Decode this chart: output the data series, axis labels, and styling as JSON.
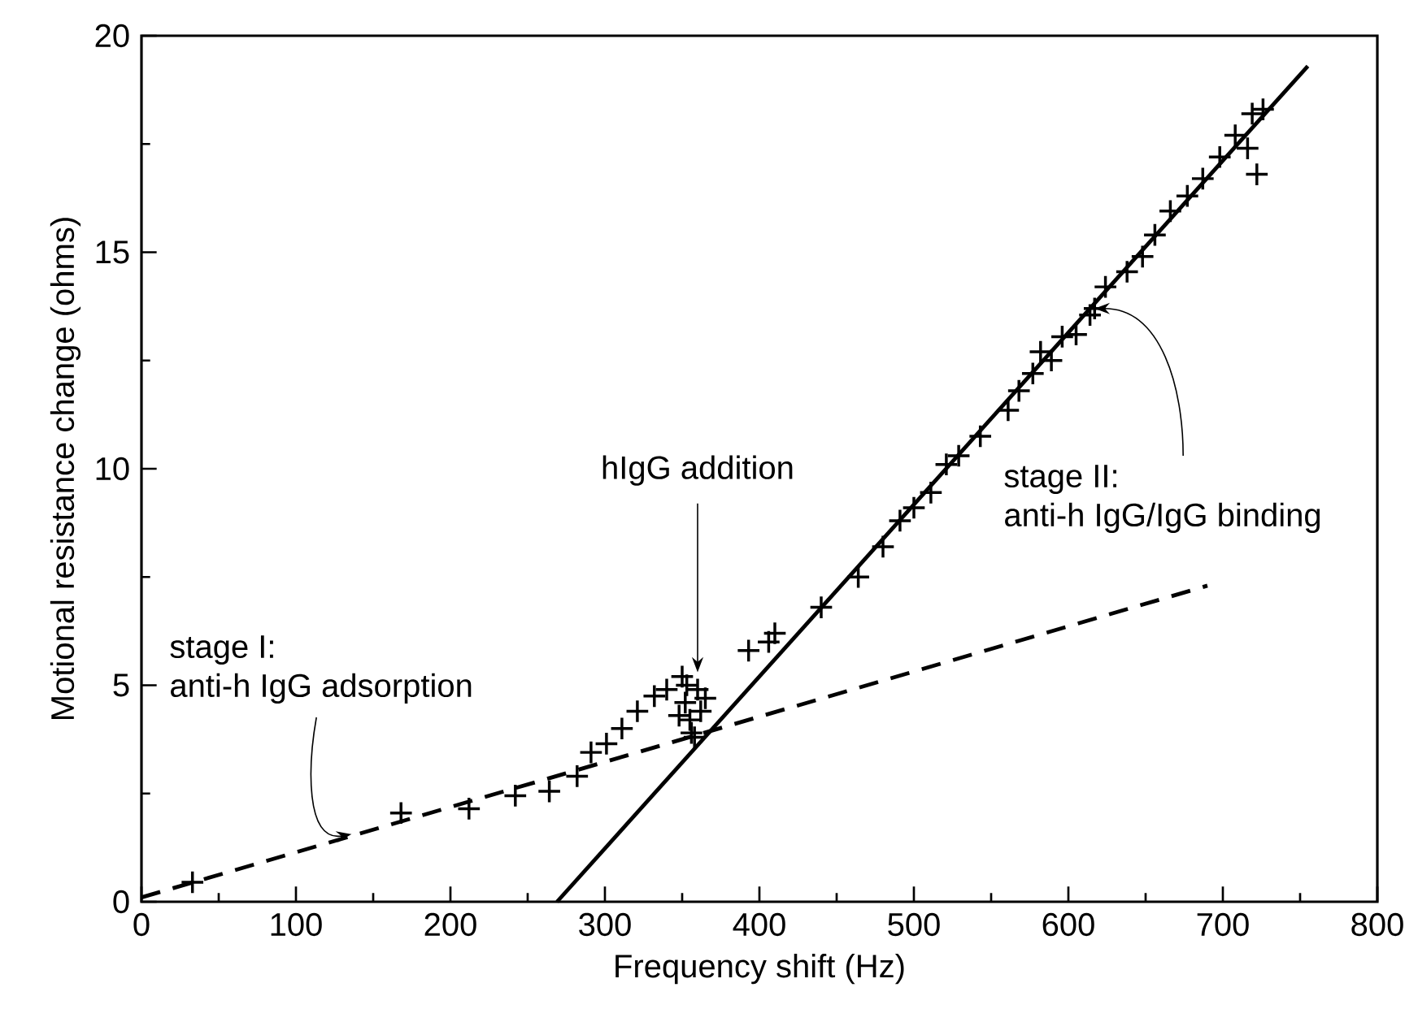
{
  "chart_data": {
    "type": "scatter",
    "xlabel": "Frequency shift (Hz)",
    "ylabel": "Motional resistance change (ohms)",
    "xlim": [
      0,
      800
    ],
    "ylim": [
      0,
      20
    ],
    "xticks": [
      0,
      100,
      200,
      300,
      400,
      500,
      600,
      700,
      800
    ],
    "yticks": [
      0,
      5,
      10,
      15,
      20
    ],
    "marker": "cross",
    "grid": false,
    "series": [
      {
        "color": "#000000",
        "x": [
          33,
          168,
          212,
          242,
          264,
          282,
          291,
          301,
          311,
          321,
          332,
          340,
          348,
          350,
          352,
          353,
          355,
          356,
          358,
          360,
          362,
          365,
          393,
          406,
          410,
          440,
          464,
          480,
          491,
          500,
          511,
          521,
          529,
          543,
          561,
          568,
          577,
          582,
          589,
          596,
          605,
          614,
          617,
          624,
          638,
          648,
          656,
          666,
          677,
          687,
          698,
          708,
          716,
          719,
          722,
          726
        ],
        "values": [
          0.45,
          2.05,
          2.15,
          2.45,
          2.55,
          2.9,
          3.45,
          3.65,
          4.0,
          4.4,
          4.75,
          4.9,
          4.3,
          5.2,
          4.6,
          5.0,
          4.2,
          3.9,
          3.8,
          4.9,
          4.4,
          4.7,
          5.8,
          6.0,
          6.2,
          6.8,
          7.5,
          8.2,
          8.8,
          9.1,
          9.45,
          10.1,
          10.3,
          10.75,
          11.35,
          11.8,
          12.2,
          12.7,
          12.5,
          13.05,
          13.1,
          13.55,
          13.7,
          14.2,
          14.55,
          14.9,
          15.4,
          15.95,
          16.3,
          16.7,
          17.2,
          17.7,
          17.4,
          18.2,
          16.8,
          18.3
        ]
      },
      {
        "type": "line",
        "marker": "none",
        "line_style": "solid",
        "color": "#000000",
        "x": [
          269,
          755
        ],
        "values": [
          0,
          19.3
        ]
      },
      {
        "type": "line",
        "marker": "none",
        "line_style": "dashed",
        "color": "#000000",
        "x": [
          0,
          690
        ],
        "values": [
          0.1,
          7.3
        ]
      }
    ],
    "annotations": [
      {
        "text": "hIgG addition",
        "x": 360,
        "y": 5.3
      },
      {
        "text": "stage I: anti-h IgG adsorption",
        "x": 136,
        "y": 1.56
      },
      {
        "text": "stage II: anti-h IgG/IgG binding",
        "x": 617,
        "y": 13.7
      }
    ]
  }
}
